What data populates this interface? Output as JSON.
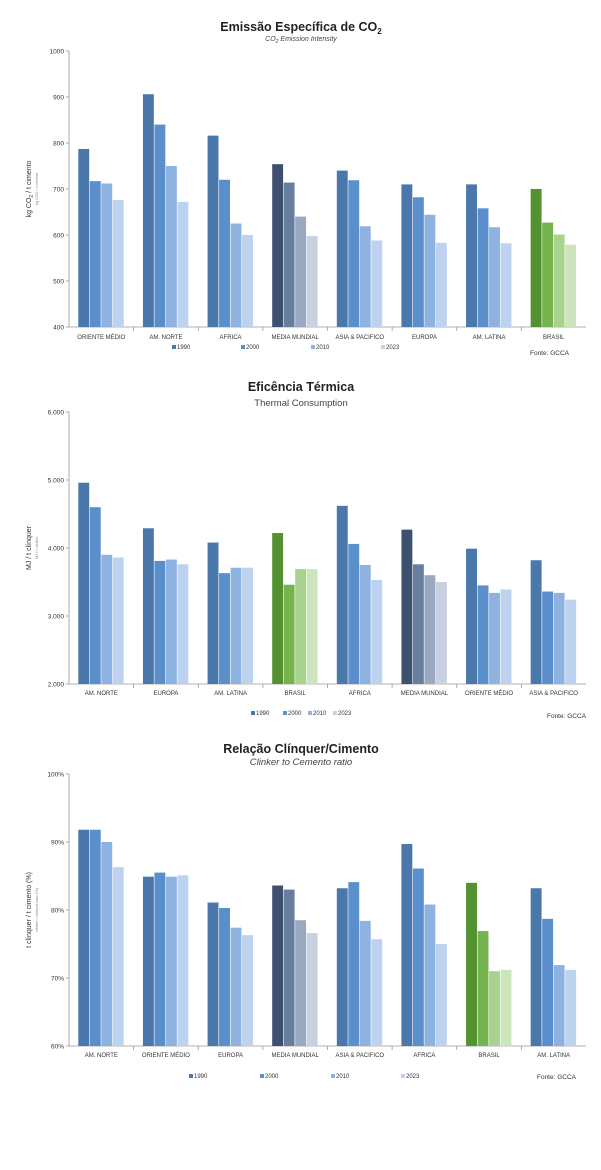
{
  "chart_data": [
    {
      "type": "bar",
      "title": "Emissão Específica de CO",
      "title_sub": "2",
      "subtitle": "CO",
      "subtitle_sub": "2",
      "subtitle_rest": " Emission Intensity",
      "ylabel": "kg CO",
      "ylabel_sub": "2",
      "ylabel_rest": " / t cimento",
      "ylabel_small": "kg CO2 / t cement",
      "ylim": [
        400,
        1000
      ],
      "yticks": [
        "400",
        "500",
        "600",
        "700",
        "800",
        "900",
        "1000"
      ],
      "ytick_values": [
        400,
        500,
        600,
        700,
        800,
        900,
        1000
      ],
      "categories": [
        "ORIENTE MÉDIO",
        "AM. NORTE",
        "AFRICA",
        "MEDIA MUNDIAL",
        "ASIA & PACIFICO",
        "EUROPA",
        "AM. LATINA",
        "BRASIL"
      ],
      "series": [
        {
          "name": "1990",
          "values": [
            787,
            906,
            816,
            754,
            740,
            710,
            710,
            700
          ]
        },
        {
          "name": "2000",
          "values": [
            717,
            840,
            720,
            714,
            719,
            682,
            658,
            627
          ]
        },
        {
          "name": "2010",
          "values": [
            712,
            750,
            625,
            640,
            619,
            644,
            617,
            601
          ]
        },
        {
          "name": "2023",
          "values": [
            676,
            672,
            600,
            598,
            588,
            583,
            582,
            579
          ]
        }
      ],
      "source": "Fonte: GCCA",
      "grid": false,
      "legend": "bottom"
    },
    {
      "type": "bar",
      "title": "Eficência Térmica",
      "subtitle": "Thermal Consumption",
      "ylabel": "MJ / t clínquer",
      "ylabel_small": "MJ / t clinker",
      "ylim": [
        2000,
        6000
      ],
      "yticks": [
        "2.000",
        "3.000",
        "4.000",
        "5.000",
        "6.000"
      ],
      "ytick_values": [
        2000,
        3000,
        4000,
        5000,
        6000
      ],
      "categories": [
        "AM. NORTE",
        "EUROPA",
        "AM. LATINA",
        "BRASIL",
        "AFRICA",
        "MEDIA MUNDIAL",
        "ORIENTE MÉDIO",
        "ASIA & PACIFICO"
      ],
      "series": [
        {
          "name": "1990",
          "values": [
            4960,
            4290,
            4080,
            4220,
            4620,
            4270,
            3990,
            3820
          ]
        },
        {
          "name": "2000",
          "values": [
            4600,
            3810,
            3630,
            3460,
            4060,
            3760,
            3450,
            3360
          ]
        },
        {
          "name": "2010",
          "values": [
            3900,
            3830,
            3710,
            3690,
            3750,
            3600,
            3340,
            3340
          ]
        },
        {
          "name": "2023",
          "values": [
            3860,
            3760,
            3710,
            3690,
            3530,
            3500,
            3390,
            3240
          ]
        }
      ],
      "source": "Fonte: GCCA",
      "grid": false,
      "legend": "bottom"
    },
    {
      "type": "bar",
      "title": "Relação Clínquer/Cimento",
      "subtitle": "Clinker to Cemento ratio",
      "ylabel": "t clínquer / t cimento (%)",
      "ylabel_small": "clinker / cement ratio (%)",
      "ylim": [
        60,
        100
      ],
      "yticks": [
        "60%",
        "70%",
        "80%",
        "90%",
        "100%"
      ],
      "ytick_values": [
        60,
        70,
        80,
        90,
        100
      ],
      "categories": [
        "AM. NORTE",
        "ORIENTE MÉDIO",
        "EUROPA",
        "MEDIA MUNDIAL",
        "ASIA & PACIFICO",
        "AFRICA",
        "BRASIL",
        "AM. LATINA"
      ],
      "series": [
        {
          "name": "1990",
          "values": [
            91.8,
            84.9,
            81.1,
            83.6,
            83.2,
            89.7,
            84.0,
            83.2
          ]
        },
        {
          "name": "2000",
          "values": [
            91.8,
            85.5,
            80.3,
            83.0,
            84.1,
            86.1,
            76.9,
            78.7
          ]
        },
        {
          "name": "2010",
          "values": [
            90.0,
            84.9,
            77.4,
            78.5,
            78.4,
            80.8,
            71.0,
            71.9
          ]
        },
        {
          "name": "2023",
          "values": [
            86.3,
            85.1,
            76.3,
            76.6,
            75.7,
            75.0,
            71.2,
            71.2
          ]
        }
      ],
      "source": "Fonte: GCCA",
      "grid": false,
      "legend": "bottom"
    }
  ],
  "colors": {
    "default": [
      "#4a78aa",
      "#5b8fcc",
      "#8fb3e0",
      "#bcd2ee"
    ],
    "mundial": [
      "#3e5070",
      "#667f9f",
      "#9aa8c2",
      "#c8d1e1"
    ],
    "brasil": [
      "#549231",
      "#74b34e",
      "#a8d38e",
      "#cde5bd"
    ],
    "axis": "#999999",
    "text": "#333333"
  }
}
